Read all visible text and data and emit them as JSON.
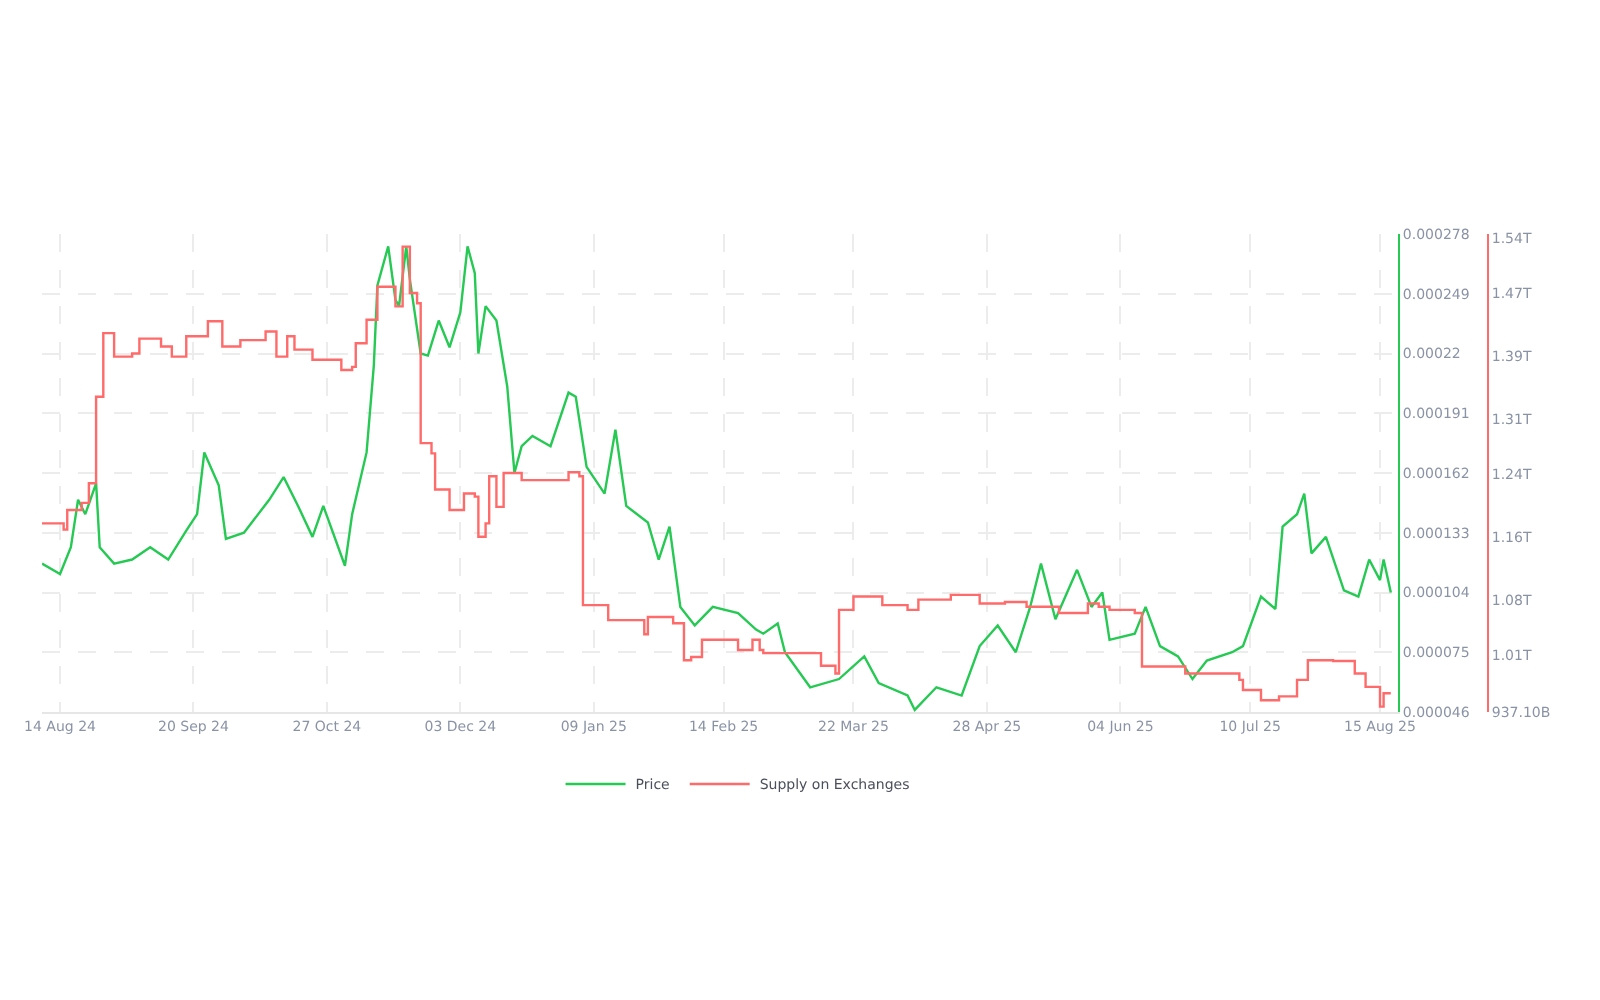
{
  "chart_data": {
    "type": "line",
    "xlim": [
      "2024-08-09",
      "2025-08-20"
    ],
    "xticks": [
      {
        "value": "2024-08-14",
        "label": "14 Aug 24"
      },
      {
        "value": "2024-09-20",
        "label": "20 Sep 24"
      },
      {
        "value": "2024-10-27",
        "label": "27 Oct 24"
      },
      {
        "value": "2024-12-03",
        "label": "03 Dec 24"
      },
      {
        "value": "2025-01-09",
        "label": "09 Jan 25"
      },
      {
        "value": "2025-02-14",
        "label": "14 Feb 25"
      },
      {
        "value": "2025-03-22",
        "label": "22 Mar 25"
      },
      {
        "value": "2025-04-28",
        "label": "28 Apr 25"
      },
      {
        "value": "2025-06-04",
        "label": "04 Jun 25"
      },
      {
        "value": "2025-07-10",
        "label": "10 Jul 25"
      },
      {
        "value": "2025-08-15",
        "label": "15 Aug 25"
      }
    ],
    "ylim": [
      4.6e-05,
      0.000278
    ],
    "yticks": [
      {
        "value": 4.6e-05,
        "label": "0.000046"
      },
      {
        "value": 7.5e-05,
        "label": "0.000075"
      },
      0.000104,
      0.000133,
      0.000162,
      0.000191,
      0.00022,
      0.000249,
      0.000278
    ],
    "y2lim": [
      937100000000,
      1545000000000
    ],
    "y2ticks": [
      {
        "value": 937100000000,
        "label": "937.10B"
      },
      {
        "value": 1010000000000,
        "label": "1.01T"
      },
      {
        "value": 1080000000000,
        "label": "1.08T"
      },
      {
        "value": 1160000000000,
        "label": "1.16T"
      },
      {
        "value": 1240000000000,
        "label": "1.24T"
      },
      {
        "value": 1310000000000,
        "label": "1.31T"
      },
      {
        "value": 1390000000000,
        "label": "1.39T"
      },
      {
        "value": 1470000000000,
        "label": "1.47T"
      },
      {
        "value": 1540000000000,
        "label": "1.54T"
      }
    ],
    "grid": true,
    "legend": "bottom",
    "series": [
      {
        "name": "Price",
        "color": "#26c953",
        "x": [
          "2024-08-09",
          "2024-08-14",
          "2024-08-17",
          "2024-08-19",
          "2024-08-21",
          "2024-08-24",
          "2024-08-25",
          "2024-08-29",
          "2024-09-03",
          "2024-09-08",
          "2024-09-13",
          "2024-09-18",
          "2024-09-21",
          "2024-09-23",
          "2024-09-27",
          "2024-09-29",
          "2024-10-04",
          "2024-10-11",
          "2024-10-15",
          "2024-10-19",
          "2024-10-23",
          "2024-10-26",
          "2024-11-01",
          "2024-11-03",
          "2024-11-07",
          "2024-11-09",
          "2024-11-10",
          "2024-11-13",
          "2024-11-15",
          "2024-11-16",
          "2024-11-18",
          "2024-11-19",
          "2024-11-22",
          "2024-11-24",
          "2024-11-27",
          "2024-11-30",
          "2024-12-03",
          "2024-12-05",
          "2024-12-07",
          "2024-12-08",
          "2024-12-10",
          "2024-12-13",
          "2024-12-16",
          "2024-12-18",
          "2024-12-20",
          "2024-12-23",
          "2024-12-28",
          "2025-01-02",
          "2025-01-04",
          "2025-01-07",
          "2025-01-12",
          "2025-01-15",
          "2025-01-18",
          "2025-01-24",
          "2025-01-27",
          "2025-01-30",
          "2025-02-02",
          "2025-02-06",
          "2025-02-11",
          "2025-02-18",
          "2025-02-23",
          "2025-02-25",
          "2025-03-01",
          "2025-03-03",
          "2025-03-10",
          "2025-03-18",
          "2025-03-25",
          "2025-03-29",
          "2025-04-06",
          "2025-04-08",
          "2025-04-14",
          "2025-04-21",
          "2025-04-26",
          "2025-05-01",
          "2025-05-06",
          "2025-05-10",
          "2025-05-13",
          "2025-05-17",
          "2025-05-23",
          "2025-05-27",
          "2025-05-30",
          "2025-06-01",
          "2025-06-08",
          "2025-06-11",
          "2025-06-15",
          "2025-06-20",
          "2025-06-24",
          "2025-06-28",
          "2025-07-05",
          "2025-07-08",
          "2025-07-13",
          "2025-07-17",
          "2025-07-19",
          "2025-07-23",
          "2025-07-25",
          "2025-07-27",
          "2025-07-31",
          "2025-08-05",
          "2025-08-09",
          "2025-08-12",
          "2025-08-15",
          "2025-08-16",
          "2025-08-18"
        ],
        "values": [
          0.000118,
          0.000113,
          0.000126,
          0.000149,
          0.000142,
          0.000157,
          0.000126,
          0.000118,
          0.00012,
          0.000126,
          0.00012,
          0.000134,
          0.000142,
          0.000172,
          0.000156,
          0.00013,
          0.000133,
          0.000149,
          0.00016,
          0.000146,
          0.000131,
          0.000146,
          0.000117,
          0.000142,
          0.000172,
          0.000214,
          0.000253,
          0.000272,
          0.000246,
          0.000243,
          0.000272,
          0.000256,
          0.00022,
          0.000219,
          0.000236,
          0.000223,
          0.00024,
          0.000272,
          0.000259,
          0.00022,
          0.000243,
          0.000236,
          0.000204,
          0.000162,
          0.000175,
          0.00018,
          0.000175,
          0.000201,
          0.000199,
          0.000165,
          0.000152,
          0.000183,
          0.000146,
          0.000138,
          0.00012,
          0.000136,
          9.7e-05,
          8.8e-05,
          9.7e-05,
          9.4e-05,
          8.6e-05,
          8.4e-05,
          8.9e-05,
          7.5e-05,
          5.8e-05,
          6.2e-05,
          7.3e-05,
          6e-05,
          5.4e-05,
          4.7e-05,
          5.8e-05,
          5.4e-05,
          7.8e-05,
          8.8e-05,
          7.5e-05,
          9.7e-05,
          0.000118,
          9.1e-05,
          0.000115,
          9.7e-05,
          0.000104,
          8.1e-05,
          8.4e-05,
          9.7e-05,
          7.8e-05,
          7.3e-05,
          6.2e-05,
          7.1e-05,
          7.5e-05,
          7.8e-05,
          0.000102,
          9.6e-05,
          0.000136,
          0.000142,
          0.000152,
          0.000123,
          0.000131,
          0.000105,
          0.000102,
          0.00012,
          0.00011,
          0.00012,
          0.000104
        ]
      },
      {
        "name": "Supply on Exchanges",
        "color": "#ff6b6b",
        "type": "step",
        "axis": "y2",
        "x": [
          "2024-08-09",
          "2024-08-15",
          "2024-08-16",
          "2024-08-20",
          "2024-08-22",
          "2024-08-24",
          "2024-08-26",
          "2024-08-29",
          "2024-09-03",
          "2024-09-05",
          "2024-09-11",
          "2024-09-14",
          "2024-09-18",
          "2024-09-24",
          "2024-09-28",
          "2024-10-03",
          "2024-10-10",
          "2024-10-13",
          "2024-10-16",
          "2024-10-18",
          "2024-10-23",
          "2024-10-28",
          "2024-10-31",
          "2024-11-03",
          "2024-11-04",
          "2024-11-07",
          "2024-11-10",
          "2024-11-13",
          "2024-11-15",
          "2024-11-17",
          "2024-11-19",
          "2024-11-21",
          "2024-11-22",
          "2024-11-25",
          "2024-11-26",
          "2024-11-30",
          "2024-12-04",
          "2024-12-07",
          "2024-12-08",
          "2024-12-10",
          "2024-12-11",
          "2024-12-13",
          "2024-12-15",
          "2024-12-20",
          "2024-12-30",
          "2025-01-02",
          "2025-01-05",
          "2025-01-06",
          "2025-01-13",
          "2025-01-16",
          "2025-01-23",
          "2025-01-24",
          "2025-01-31",
          "2025-02-03",
          "2025-02-05",
          "2025-02-08",
          "2025-02-15",
          "2025-02-18",
          "2025-02-22",
          "2025-02-24",
          "2025-02-25",
          "2025-03-10",
          "2025-03-13",
          "2025-03-17",
          "2025-03-18",
          "2025-03-22",
          "2025-03-30",
          "2025-04-06",
          "2025-04-09",
          "2025-04-18",
          "2025-04-26",
          "2025-05-03",
          "2025-05-09",
          "2025-05-18",
          "2025-05-26",
          "2025-05-29",
          "2025-06-01",
          "2025-06-08",
          "2025-06-10",
          "2025-06-22",
          "2025-07-07",
          "2025-07-08",
          "2025-07-13",
          "2025-07-18",
          "2025-07-23",
          "2025-07-26",
          "2025-08-02",
          "2025-08-08",
          "2025-08-11",
          "2025-08-15",
          "2025-08-16",
          "2025-08-18"
        ],
        "values": [
          1177000000000,
          1169000000000,
          1194000000000,
          1203000000000,
          1228000000000,
          1338000000000,
          1419000000000,
          1389000000000,
          1393000000000,
          1412000000000,
          1402000000000,
          1389000000000,
          1415000000000,
          1434000000000,
          1402000000000,
          1410000000000,
          1421000000000,
          1389000000000,
          1415000000000,
          1398000000000,
          1385000000000,
          1385000000000,
          1372000000000,
          1376000000000,
          1406000000000,
          1436000000000,
          1478000000000,
          1478000000000,
          1453000000000,
          1529000000000,
          1470000000000,
          1457000000000,
          1279000000000,
          1266000000000,
          1220000000000,
          1194000000000,
          1215000000000,
          1211000000000,
          1160000000000,
          1177000000000,
          1237000000000,
          1198000000000,
          1241000000000,
          1232000000000,
          1232000000000,
          1242000000000,
          1237000000000,
          1073000000000,
          1054000000000,
          1054000000000,
          1036000000000,
          1058000000000,
          1050000000000,
          1003000000000,
          1007000000000,
          1029000000000,
          1029000000000,
          1016000000000,
          1029000000000,
          1016000000000,
          1012000000000,
          1012000000000,
          996000000000,
          986000000000,
          1067000000000,
          1084000000000,
          1073000000000,
          1067000000000,
          1080000000000,
          1086000000000,
          1075000000000,
          1077000000000,
          1071000000000,
          1063000000000,
          1075000000000,
          1071000000000,
          1067000000000,
          1063000000000,
          995000000000,
          986000000000,
          978000000000,
          965000000000,
          952000000000,
          957000000000,
          978000000000,
          1003000000000,
          1002000000000,
          986000000000,
          969000000000,
          944000000000,
          961000000000,
          961000000000
        ]
      }
    ]
  }
}
